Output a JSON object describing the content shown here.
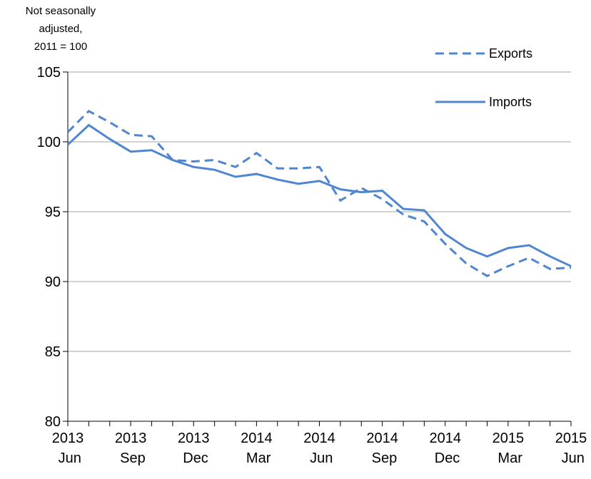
{
  "chart_data": {
    "type": "line",
    "y_label": [
      "Not seasonally",
      "adjusted,",
      "2011 = 100"
    ],
    "categories": [
      "2013 Jun",
      null,
      null,
      "2013 Sep",
      null,
      null,
      "2013 Dec",
      null,
      null,
      "2014 Mar",
      null,
      null,
      "2014 Jun",
      null,
      null,
      "2014 Sep",
      null,
      null,
      "2014 Dec",
      null,
      null,
      "2015 Mar",
      null,
      null,
      "2015 Jun"
    ],
    "series": [
      {
        "name": "Exports",
        "color": "#4f86cf",
        "dash": true,
        "values": [
          100.7,
          102.2,
          101.4,
          100.5,
          100.4,
          98.7,
          98.6,
          98.7,
          98.2,
          99.2,
          98.1,
          98.1,
          98.2,
          95.8,
          96.7,
          95.9,
          94.8,
          94.3,
          92.7,
          91.3,
          90.4,
          91.1,
          91.7,
          90.9,
          91.0
        ]
      },
      {
        "name": "Imports",
        "color": "#4f86cf",
        "dash": false,
        "values": [
          99.8,
          101.2,
          100.2,
          99.3,
          99.4,
          98.7,
          98.2,
          98.0,
          97.5,
          97.7,
          97.3,
          97.0,
          97.2,
          96.6,
          96.4,
          96.5,
          95.2,
          95.1,
          93.4,
          92.4,
          91.8,
          92.4,
          92.6,
          91.8,
          91.1
        ]
      }
    ],
    "ylim": [
      80,
      105
    ],
    "yticks": [
      80,
      85,
      90,
      95,
      100,
      105
    ],
    "grid": true,
    "legend": "top-right"
  }
}
